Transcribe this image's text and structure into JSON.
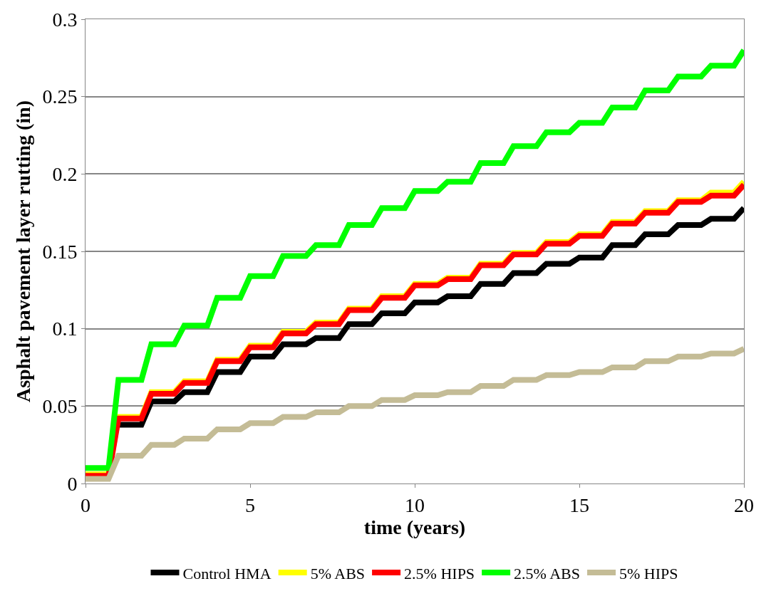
{
  "chart_data": {
    "type": "line",
    "xlabel": "time (years)",
    "ylabel": "Asphalt pavement layer rutting (in)",
    "xlim": [
      0,
      20
    ],
    "xticks": [
      0,
      5,
      10,
      15,
      20
    ],
    "ylim": [
      0,
      0.3
    ],
    "yticks": [
      0,
      0.05,
      0.1,
      0.15,
      0.2,
      0.25,
      0.3
    ],
    "grid": "y",
    "legend": "bottom",
    "marker": "none",
    "line_style": "solid",
    "x": [
      0,
      0.7,
      1,
      1.7,
      2,
      2.7,
      3,
      3.7,
      4,
      4.7,
      5,
      5.7,
      6,
      6.7,
      7,
      7.7,
      8,
      8.7,
      9,
      9.7,
      10,
      10.7,
      11,
      11.7,
      12,
      12.7,
      13,
      13.7,
      14,
      14.7,
      15,
      15.7,
      16,
      16.7,
      17,
      17.7,
      18,
      18.7,
      19,
      19.7,
      20
    ],
    "series": [
      {
        "name": "Control HMA",
        "color": "#000000",
        "values": [
          null,
          null,
          0.038,
          0.038,
          0.053,
          0.053,
          0.059,
          0.059,
          0.072,
          0.072,
          0.082,
          0.082,
          0.09,
          0.09,
          0.094,
          0.094,
          0.103,
          0.103,
          0.11,
          0.11,
          0.117,
          0.117,
          0.121,
          0.121,
          0.129,
          0.129,
          0.136,
          0.136,
          0.142,
          0.142,
          0.146,
          0.146,
          0.154,
          0.154,
          0.161,
          0.161,
          0.167,
          0.167,
          0.171,
          0.171,
          0.178
        ]
      },
      {
        "name": "5% ABS",
        "color": "#ffff00",
        "values": [
          0.006,
          0.006,
          0.043,
          0.043,
          0.059,
          0.059,
          0.066,
          0.066,
          0.08,
          0.08,
          0.089,
          0.089,
          0.098,
          0.098,
          0.104,
          0.104,
          0.113,
          0.113,
          0.121,
          0.121,
          0.129,
          0.129,
          0.133,
          0.133,
          0.142,
          0.142,
          0.149,
          0.149,
          0.156,
          0.156,
          0.161,
          0.161,
          0.169,
          0.169,
          0.176,
          0.176,
          0.183,
          0.183,
          0.188,
          0.188,
          0.195
        ]
      },
      {
        "name": "2.5% HIPS",
        "color": "#ff0000",
        "values": [
          0.005,
          0.005,
          0.042,
          0.042,
          0.058,
          0.058,
          0.065,
          0.065,
          0.079,
          0.079,
          0.088,
          0.088,
          0.097,
          0.097,
          0.103,
          0.103,
          0.112,
          0.112,
          0.12,
          0.12,
          0.128,
          0.128,
          0.132,
          0.132,
          0.141,
          0.141,
          0.148,
          0.148,
          0.155,
          0.155,
          0.16,
          0.16,
          0.168,
          0.168,
          0.175,
          0.175,
          0.182,
          0.182,
          0.186,
          0.186,
          0.193
        ]
      },
      {
        "name": "2.5% ABS",
        "color": "#00ff00",
        "values": [
          0.01,
          0.01,
          0.067,
          0.067,
          0.09,
          0.09,
          0.102,
          0.102,
          0.12,
          0.12,
          0.134,
          0.134,
          0.147,
          0.147,
          0.154,
          0.154,
          0.167,
          0.167,
          0.178,
          0.178,
          0.189,
          0.189,
          0.195,
          0.195,
          0.207,
          0.207,
          0.218,
          0.218,
          0.227,
          0.227,
          0.233,
          0.233,
          0.243,
          0.243,
          0.254,
          0.254,
          0.263,
          0.263,
          0.27,
          0.27,
          0.28
        ]
      },
      {
        "name": "5% HIPS",
        "color": "#c4bc96",
        "values": [
          0.003,
          0.003,
          0.018,
          0.018,
          0.025,
          0.025,
          0.029,
          0.029,
          0.035,
          0.035,
          0.039,
          0.039,
          0.043,
          0.043,
          0.046,
          0.046,
          0.05,
          0.05,
          0.054,
          0.054,
          0.057,
          0.057,
          0.059,
          0.059,
          0.063,
          0.063,
          0.067,
          0.067,
          0.07,
          0.07,
          0.072,
          0.072,
          0.075,
          0.075,
          0.079,
          0.079,
          0.082,
          0.082,
          0.084,
          0.084,
          0.087
        ]
      }
    ]
  }
}
